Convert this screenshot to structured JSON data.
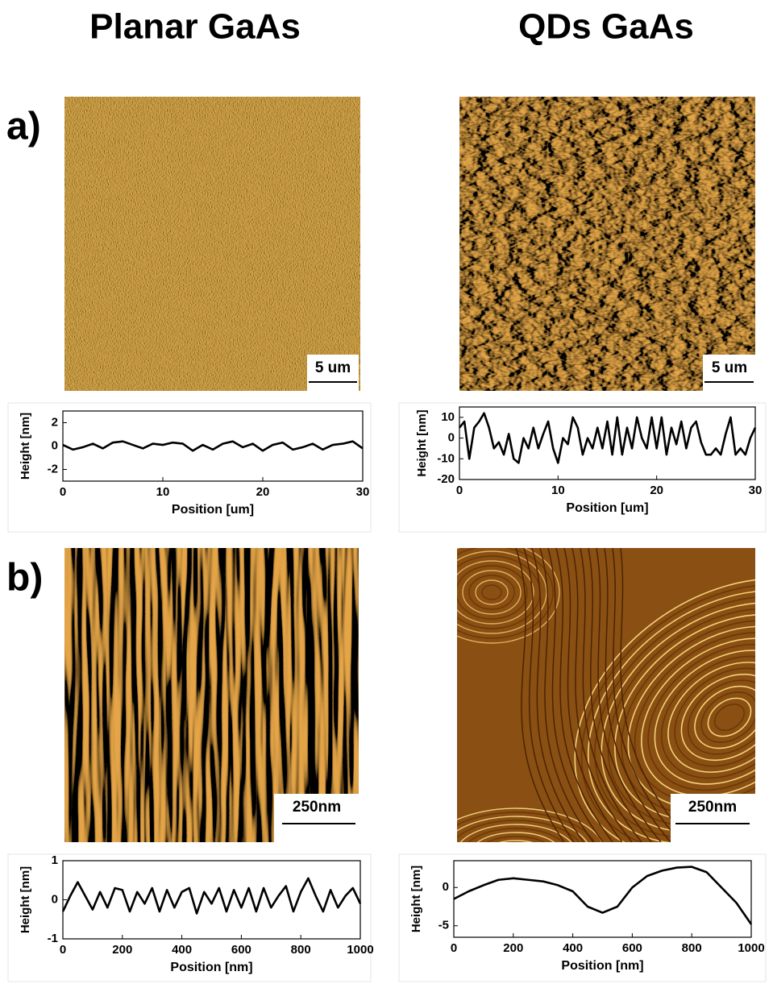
{
  "column_titles": [
    "Planar GaAs",
    "QDs GaAs"
  ],
  "panel_labels": [
    "a)",
    "b)"
  ],
  "scale_bars": [
    "5 um",
    "5 um",
    "250nm",
    "250nm"
  ],
  "chart_data": [
    {
      "type": "line",
      "ylabel": "Height [nm]",
      "xlabel": "Position [um]",
      "color": "#000000",
      "x": [
        0,
        1,
        2,
        3,
        4,
        5,
        6,
        7,
        8,
        9,
        10,
        11,
        12,
        13,
        14,
        15,
        16,
        17,
        18,
        19,
        20,
        21,
        22,
        23,
        24,
        25,
        26,
        27,
        28,
        29,
        30
      ],
      "values": [
        0.1,
        -0.3,
        -0.1,
        0.2,
        -0.2,
        0.3,
        0.4,
        0.1,
        -0.2,
        0.2,
        0.1,
        0.3,
        0.2,
        -0.4,
        0.1,
        -0.3,
        0.2,
        0.4,
        -0.1,
        0.2,
        -0.4,
        0.1,
        0.3,
        -0.3,
        -0.1,
        0.2,
        -0.3,
        0.1,
        0.2,
        0.4,
        -0.2
      ],
      "xlim": [
        0,
        30
      ],
      "ylim": [
        -3,
        3
      ],
      "xticks": [
        0,
        10,
        20,
        30
      ],
      "yticks": [
        -2,
        0,
        2
      ]
    },
    {
      "type": "line",
      "ylabel": "Height [nm]",
      "xlabel": "Position [um]",
      "color": "#000000",
      "x": [
        0,
        0.5,
        1,
        1.5,
        2,
        2.5,
        3,
        3.5,
        4,
        4.5,
        5,
        5.5,
        6,
        6.5,
        7,
        7.5,
        8,
        8.5,
        9,
        9.5,
        10,
        10.5,
        11,
        11.5,
        12,
        12.5,
        13,
        13.5,
        14,
        14.5,
        15,
        15.5,
        16,
        16.5,
        17,
        17.5,
        18,
        18.5,
        19,
        19.5,
        20,
        20.5,
        21,
        21.5,
        22,
        22.5,
        23,
        23.5,
        24,
        24.5,
        25,
        25.5,
        26,
        26.5,
        27,
        27.5,
        28,
        28.5,
        29,
        29.5,
        30
      ],
      "values": [
        5,
        8,
        -10,
        5,
        8,
        12,
        5,
        -5,
        -2,
        -8,
        2,
        -10,
        -12,
        0,
        -5,
        5,
        -5,
        2,
        8,
        -5,
        -12,
        0,
        -3,
        10,
        5,
        -8,
        0,
        -5,
        5,
        -5,
        8,
        -8,
        10,
        -8,
        5,
        -5,
        10,
        0,
        -5,
        10,
        -5,
        10,
        -8,
        5,
        -3,
        8,
        -5,
        5,
        8,
        -2,
        -8,
        -8,
        -5,
        -8,
        2,
        10,
        -8,
        -5,
        -8,
        0,
        5
      ],
      "xlim": [
        0,
        30
      ],
      "ylim": [
        -20,
        15
      ],
      "xticks": [
        0,
        10,
        20,
        30
      ],
      "yticks": [
        -20,
        -10,
        0,
        10
      ]
    },
    {
      "type": "line",
      "ylabel": "Height [nm]",
      "xlabel": "Position [nm]",
      "color": "#000000",
      "x": [
        0,
        25,
        50,
        75,
        100,
        125,
        150,
        175,
        200,
        225,
        250,
        275,
        300,
        325,
        350,
        375,
        400,
        425,
        450,
        475,
        500,
        525,
        550,
        575,
        600,
        625,
        650,
        675,
        700,
        725,
        750,
        775,
        800,
        825,
        850,
        875,
        900,
        925,
        950,
        975,
        1000
      ],
      "values": [
        -0.3,
        0.1,
        0.45,
        0.1,
        -0.25,
        0.2,
        -0.2,
        0.3,
        0.25,
        -0.3,
        0.2,
        -0.1,
        0.3,
        -0.3,
        0.25,
        -0.2,
        0.2,
        0.3,
        -0.35,
        0.2,
        -0.1,
        0.3,
        -0.3,
        0.25,
        -0.2,
        0.3,
        -0.3,
        0.3,
        -0.2,
        0.1,
        0.35,
        -0.3,
        0.2,
        0.55,
        0.1,
        -0.3,
        0.25,
        -0.2,
        0.1,
        0.3,
        -0.1
      ],
      "xlim": [
        0,
        1000
      ],
      "ylim": [
        -1,
        1
      ],
      "xticks": [
        0,
        200,
        400,
        600,
        800,
        1000
      ],
      "yticks": [
        -1,
        0,
        1
      ]
    },
    {
      "type": "line",
      "ylabel": "Height [nm]",
      "xlabel": "Position [nm]",
      "color": "#000000",
      "x": [
        0,
        50,
        100,
        150,
        200,
        250,
        300,
        350,
        400,
        450,
        500,
        550,
        600,
        650,
        700,
        750,
        800,
        850,
        900,
        950,
        1000
      ],
      "values": [
        -1.5,
        -0.5,
        0.3,
        1,
        1.2,
        1,
        0.8,
        0.3,
        -0.5,
        -2.5,
        -3.3,
        -2.5,
        0,
        1.5,
        2.2,
        2.6,
        2.7,
        2,
        0,
        -2,
        -4.8
      ],
      "xlim": [
        0,
        1000
      ],
      "ylim": [
        -6.5,
        3.5
      ],
      "xticks": [
        0,
        200,
        400,
        600,
        800,
        1000
      ],
      "yticks": [
        -5,
        0
      ]
    }
  ]
}
